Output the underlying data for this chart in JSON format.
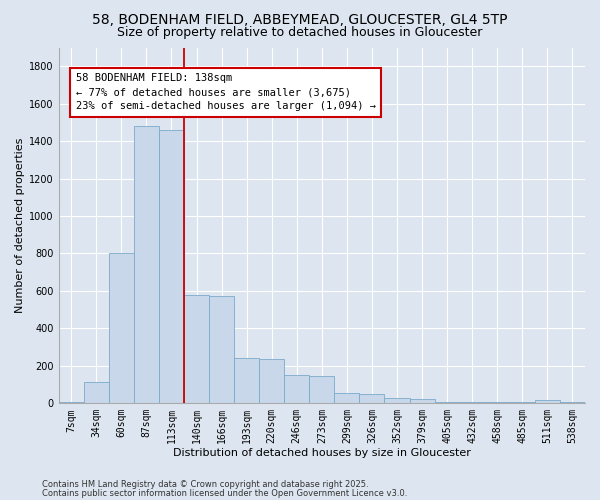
{
  "title_line1": "58, BODENHAM FIELD, ABBEYMEAD, GLOUCESTER, GL4 5TP",
  "title_line2": "Size of property relative to detached houses in Gloucester",
  "xlabel": "Distribution of detached houses by size in Gloucester",
  "ylabel": "Number of detached properties",
  "bar_color": "#c8d8ea",
  "bar_edge_color": "#7aaaca",
  "background_color": "#dde6f0",
  "grid_color": "#ffffff",
  "fig_bg_color": "#dde6f0",
  "categories": [
    "7sqm",
    "34sqm",
    "60sqm",
    "87sqm",
    "113sqm",
    "140sqm",
    "166sqm",
    "193sqm",
    "220sqm",
    "246sqm",
    "273sqm",
    "299sqm",
    "326sqm",
    "352sqm",
    "379sqm",
    "405sqm",
    "432sqm",
    "458sqm",
    "485sqm",
    "511sqm",
    "538sqm"
  ],
  "values": [
    5,
    115,
    800,
    1480,
    1460,
    580,
    575,
    240,
    235,
    150,
    145,
    55,
    50,
    28,
    25,
    8,
    8,
    4,
    4,
    18,
    4
  ],
  "ylim": [
    0,
    1900
  ],
  "yticks": [
    0,
    200,
    400,
    600,
    800,
    1000,
    1200,
    1400,
    1600,
    1800
  ],
  "vline_x_idx": 4.5,
  "annotation_text": "58 BODENHAM FIELD: 138sqm\n← 77% of detached houses are smaller (3,675)\n23% of semi-detached houses are larger (1,094) →",
  "annotation_box_color": "#ffffff",
  "annotation_border_color": "#cc0000",
  "footnote_line1": "Contains HM Land Registry data © Crown copyright and database right 2025.",
  "footnote_line2": "Contains public sector information licensed under the Open Government Licence v3.0.",
  "title_fontsize": 10,
  "subtitle_fontsize": 9,
  "axis_label_fontsize": 8,
  "tick_fontsize": 7,
  "annotation_fontsize": 7.5,
  "footnote_fontsize": 6
}
